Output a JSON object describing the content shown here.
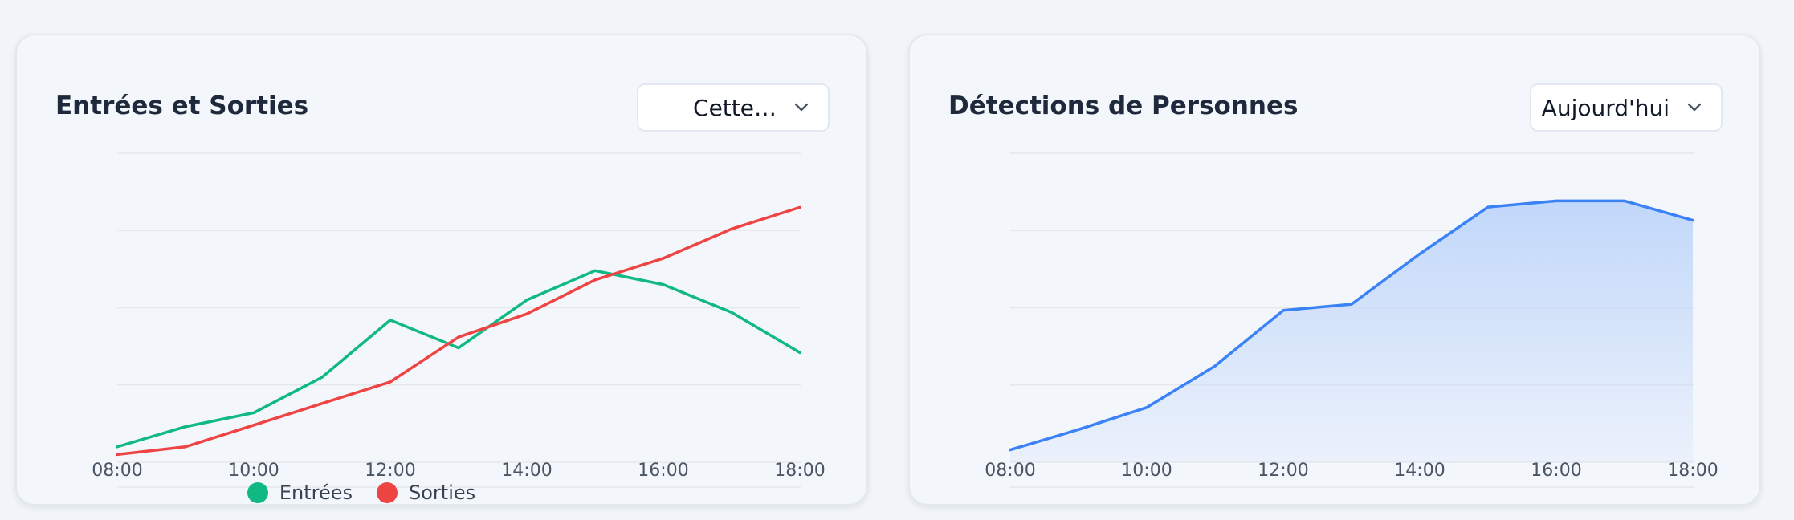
{
  "panels": {
    "entries": {
      "title": "Entrées et Sorties",
      "select_value": "Cette…",
      "legend": {
        "entries": "Entrées",
        "exits": "Sorties"
      }
    },
    "detections": {
      "title": "Détections de Personnes",
      "select_value": "Aujourd'hui"
    }
  },
  "colors": {
    "entries": "#10b981",
    "exits": "#ef4444",
    "detections": "#3b82f6",
    "detections_fill": "#bfd6fa"
  },
  "chart_data": [
    {
      "type": "line",
      "title": "Entrées et Sorties",
      "x": [
        "08:00",
        "09:00",
        "10:00",
        "11:00",
        "12:00",
        "13:00",
        "14:00",
        "15:00",
        "16:00",
        "17:00",
        "18:00"
      ],
      "tick_labels": [
        "08:00",
        "10:00",
        "12:00",
        "14:00",
        "16:00",
        "18:00"
      ],
      "series": [
        {
          "name": "Entrées",
          "values": [
            10,
            23,
            32,
            55,
            92,
            74,
            105,
            124,
            115,
            97,
            71
          ]
        },
        {
          "name": "Sorties",
          "values": [
            5,
            10,
            24,
            38,
            52,
            81,
            96,
            118,
            132,
            151,
            165
          ]
        }
      ],
      "ylim": [
        0,
        200
      ],
      "grid": true,
      "legend_position": "bottom"
    },
    {
      "type": "area",
      "title": "Détections de Personnes",
      "x": [
        "08:00",
        "09:00",
        "10:00",
        "11:00",
        "12:00",
        "13:00",
        "14:00",
        "15:00",
        "16:00",
        "17:00",
        "18:00"
      ],
      "tick_labels": [
        "08:00",
        "10:00",
        "12:00",
        "14:00",
        "16:00",
        "18:00"
      ],
      "series": [
        {
          "name": "",
          "values": [
            14,
            37,
            62,
            109,
            172,
            179,
            236,
            289,
            296,
            296,
            274
          ]
        }
      ],
      "ylim": [
        0,
        350
      ],
      "grid": true
    }
  ]
}
